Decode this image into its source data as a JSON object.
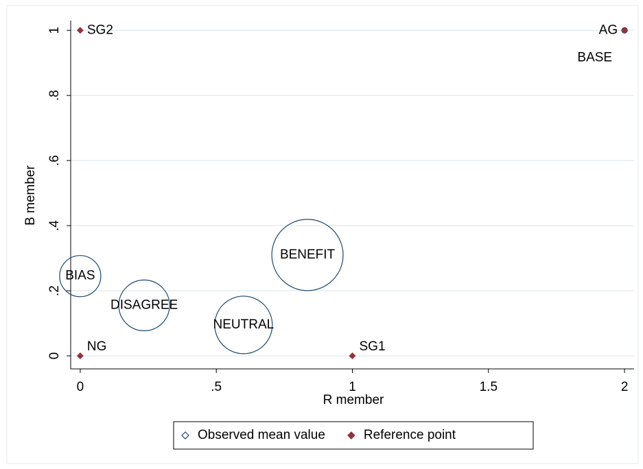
{
  "chart_data": {
    "type": "scatter",
    "x_label": "R member",
    "y_label": "B member",
    "xlim": [
      -0.035,
      2.035
    ],
    "ylim": [
      -0.04,
      1.03
    ],
    "xticks": [
      0,
      {
        "value": 0.5,
        "label": ".5"
      },
      1,
      1.5,
      2
    ],
    "yticks": [
      0,
      {
        "value": 0.2,
        "label": ".2"
      },
      {
        "value": 0.4,
        "label": ".4"
      },
      {
        "value": 0.6,
        "label": ".6"
      },
      {
        "value": 0.8,
        "label": ".8"
      },
      1
    ],
    "grid": true,
    "legend": "bottom",
    "series": [
      {
        "name": "Observed mean value",
        "color": "#1a476f",
        "marker": "hollow-circle",
        "labels": [
          "BIAS",
          "DISAGREE",
          "NEUTRAL",
          "BENEFIT",
          "BASE"
        ],
        "x": [
          0,
          0.235,
          0.6,
          0.835,
          2
        ],
        "values": [
          0.245,
          0.155,
          0.095,
          0.31,
          1
        ],
        "sizes": [
          9,
          13.7,
          17.6,
          27,
          0.16
        ]
      },
      {
        "name": "Reference point",
        "color": "#90353b",
        "marker": "diamond",
        "labels": [
          "SG2",
          "AG",
          "NG",
          "SG1"
        ],
        "x": [
          0,
          2,
          0,
          1
        ],
        "values": [
          1,
          1,
          0,
          0
        ]
      }
    ]
  }
}
